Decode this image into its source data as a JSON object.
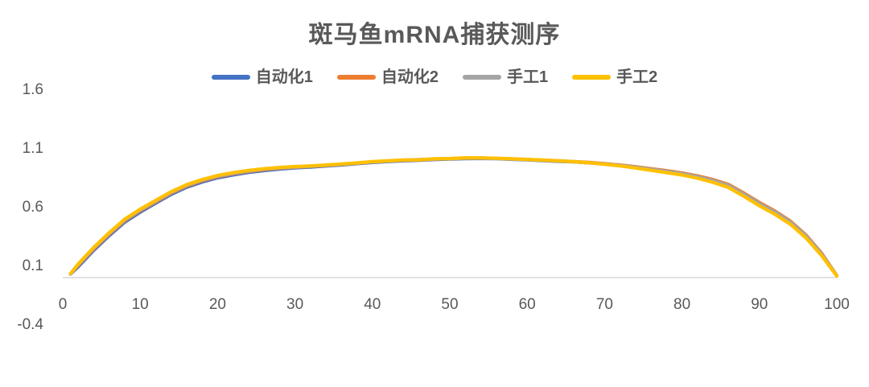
{
  "chart_data": {
    "type": "line",
    "title": "斑马鱼mRNA捕获测序",
    "legend_position": "top",
    "grid": false,
    "axis_color": "#D9D9D9",
    "text_color": "#595959",
    "xlim": [
      0,
      100
    ],
    "ylim": [
      -0.4,
      1.6
    ],
    "x_ticks": {
      "values": [
        0,
        10,
        20,
        30,
        40,
        50,
        60,
        70,
        80,
        90,
        100
      ],
      "labels": [
        "0",
        "10",
        "20",
        "30",
        "40",
        "50",
        "60",
        "70",
        "80",
        "90",
        "100"
      ]
    },
    "y_ticks": {
      "values": [
        1.6,
        1.1,
        0.6,
        0.1,
        -0.4
      ],
      "labels": [
        "1.6",
        "1.1",
        "0.6",
        "0.1",
        "-0.4"
      ]
    },
    "x": [
      1,
      2,
      4,
      6,
      8,
      10,
      12,
      14,
      16,
      18,
      20,
      22,
      24,
      26,
      28,
      30,
      32,
      34,
      36,
      38,
      40,
      42,
      44,
      46,
      48,
      50,
      52,
      54,
      56,
      58,
      60,
      62,
      64,
      66,
      68,
      70,
      72,
      74,
      76,
      78,
      80,
      82,
      84,
      86,
      88,
      90,
      92,
      94,
      96,
      98,
      100
    ],
    "series": [
      {
        "name": "自动化1",
        "color": "#4472C4",
        "values": [
          0.03,
          0.092,
          0.232,
          0.357,
          0.472,
          0.557,
          0.633,
          0.708,
          0.769,
          0.814,
          0.849,
          0.874,
          0.895,
          0.911,
          0.924,
          0.934,
          0.941,
          0.95,
          0.959,
          0.97,
          0.98,
          0.988,
          0.994,
          0.999,
          1.005,
          1.009,
          1.013,
          1.014,
          1.012,
          1.007,
          1.002,
          0.996,
          0.99,
          0.985,
          0.977,
          0.967,
          0.954,
          0.938,
          0.92,
          0.901,
          0.882,
          0.856,
          0.822,
          0.779,
          0.705,
          0.624,
          0.554,
          0.469,
          0.354,
          0.204,
          0.015
        ]
      },
      {
        "name": "自动化2",
        "color": "#ED7D31",
        "values": [
          0.031,
          0.104,
          0.244,
          0.369,
          0.484,
          0.569,
          0.644,
          0.719,
          0.779,
          0.824,
          0.858,
          0.883,
          0.903,
          0.919,
          0.93,
          0.939,
          0.946,
          0.954,
          0.963,
          0.973,
          0.984,
          0.991,
          0.998,
          1.003,
          1.008,
          1.012,
          1.016,
          1.017,
          1.015,
          1.01,
          1.005,
          1.0,
          0.994,
          0.988,
          0.98,
          0.97,
          0.958,
          0.944,
          0.927,
          0.91,
          0.891,
          0.866,
          0.834,
          0.793,
          0.719,
          0.639,
          0.567,
          0.481,
          0.364,
          0.211,
          0.017
        ]
      },
      {
        "name": "手工1",
        "color": "#A5A5A5",
        "values": [
          0.031,
          0.11,
          0.251,
          0.376,
          0.491,
          0.576,
          0.65,
          0.725,
          0.785,
          0.83,
          0.864,
          0.888,
          0.908,
          0.923,
          0.934,
          0.941,
          0.948,
          0.956,
          0.965,
          0.974,
          0.985,
          0.992,
          0.999,
          1.004,
          1.009,
          1.013,
          1.017,
          1.018,
          1.014,
          1.009,
          1.004,
          0.998,
          0.992,
          0.986,
          0.977,
          0.967,
          0.955,
          0.94,
          0.922,
          0.904,
          0.885,
          0.859,
          0.826,
          0.784,
          0.71,
          0.629,
          0.558,
          0.473,
          0.357,
          0.205,
          0.016
        ]
      },
      {
        "name": "手工2",
        "color": "#FFC000",
        "values": [
          0.033,
          0.116,
          0.257,
          0.382,
          0.497,
          0.582,
          0.657,
          0.731,
          0.791,
          0.835,
          0.869,
          0.893,
          0.912,
          0.927,
          0.938,
          0.945,
          0.951,
          0.958,
          0.967,
          0.976,
          0.987,
          0.994,
          1.001,
          1.003,
          1.011,
          1.013,
          1.02,
          1.019,
          1.016,
          1.011,
          1.006,
          1.0,
          0.994,
          0.986,
          0.977,
          0.965,
          0.951,
          0.933,
          0.913,
          0.893,
          0.873,
          0.846,
          0.811,
          0.767,
          0.691,
          0.611,
          0.539,
          0.454,
          0.339,
          0.19,
          0.013
        ]
      }
    ]
  }
}
